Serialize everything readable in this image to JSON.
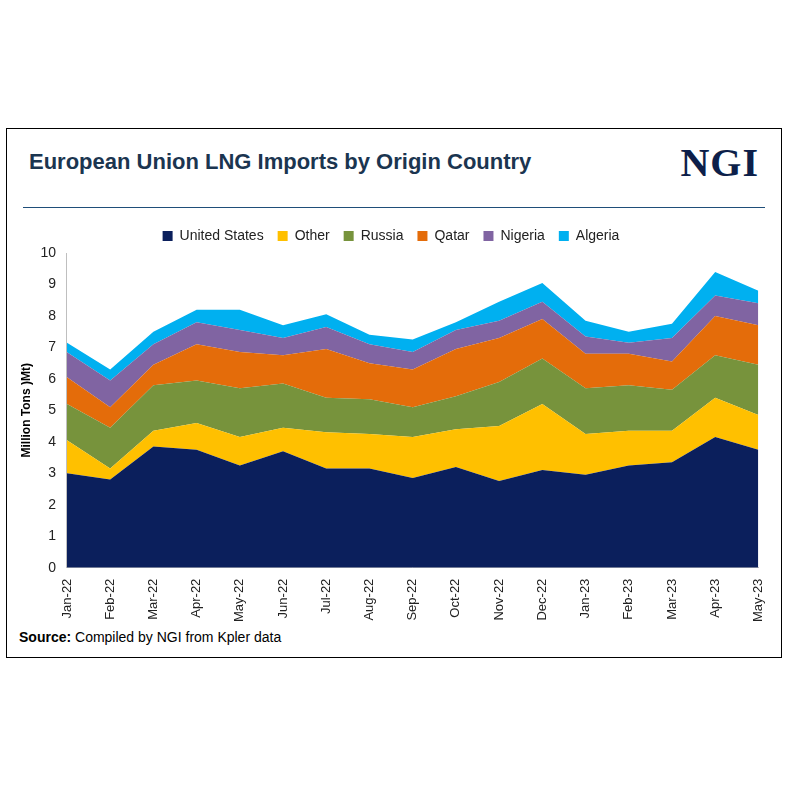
{
  "chart_data": {
    "type": "area",
    "title": "European Union LNG Imports by Origin Country",
    "logo": "NGI",
    "source": "Source: Compiled by NGI from Kpler data",
    "y_label": "Million Tons )Mt)",
    "categories": [
      "Jan-22",
      "Feb-22",
      "Mar-22",
      "Apr-22",
      "May-22",
      "Jun-22",
      "Jul-22",
      "Aug-22",
      "Sep-22",
      "Oct-22",
      "Nov-22",
      "Dec-22",
      "Jan-23",
      "Feb-23",
      "Mar-23",
      "Apr-23",
      "May-23"
    ],
    "series": [
      {
        "name": "United States",
        "color": "#0b1f5c",
        "values": [
          3.0,
          2.8,
          3.85,
          3.75,
          3.25,
          3.7,
          3.15,
          3.15,
          2.85,
          3.2,
          2.75,
          3.1,
          2.95,
          3.25,
          3.35,
          4.15,
          3.75
        ]
      },
      {
        "name": "Other",
        "color": "#ffc000",
        "values": [
          1.05,
          0.35,
          0.5,
          0.85,
          0.9,
          0.75,
          1.15,
          1.1,
          1.3,
          1.2,
          1.75,
          2.1,
          1.3,
          1.1,
          1.0,
          1.25,
          1.1
        ]
      },
      {
        "name": "Russia",
        "color": "#77933c",
        "values": [
          1.15,
          1.3,
          1.45,
          1.35,
          1.55,
          1.4,
          1.1,
          1.1,
          0.95,
          1.05,
          1.4,
          1.45,
          1.45,
          1.45,
          1.3,
          1.35,
          1.6
        ]
      },
      {
        "name": "Qatar",
        "color": "#e46c0a",
        "values": [
          0.85,
          0.65,
          0.65,
          1.15,
          1.15,
          0.9,
          1.55,
          1.15,
          1.2,
          1.5,
          1.4,
          1.25,
          1.1,
          1.0,
          0.9,
          1.25,
          1.25
        ]
      },
      {
        "name": "Nigeria",
        "color": "#8064a2",
        "values": [
          0.8,
          0.85,
          0.65,
          0.7,
          0.7,
          0.55,
          0.7,
          0.6,
          0.55,
          0.6,
          0.55,
          0.55,
          0.55,
          0.35,
          0.75,
          0.65,
          0.7
        ]
      },
      {
        "name": "Algeria",
        "color": "#00b0f0",
        "values": [
          0.3,
          0.35,
          0.4,
          0.4,
          0.65,
          0.4,
          0.4,
          0.3,
          0.4,
          0.25,
          0.6,
          0.6,
          0.5,
          0.35,
          0.45,
          0.75,
          0.4
        ]
      }
    ],
    "stacked": true,
    "ylim": [
      0,
      10
    ],
    "yticks": [
      0,
      1,
      2,
      3,
      4,
      5,
      6,
      7,
      8,
      9,
      10
    ],
    "grid": false,
    "legend": "top"
  }
}
